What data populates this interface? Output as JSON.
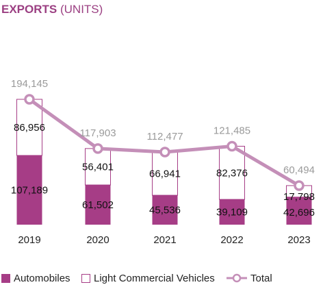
{
  "title": {
    "main": "EXPORTS",
    "sub": "(UNITS)"
  },
  "colors": {
    "automobiles": "#a63d86",
    "lcv_border": "#a63d86",
    "total_line": "#c48fb8",
    "total_label": "#9a9a9a",
    "title": "#9b3f82"
  },
  "chart_data": {
    "type": "bar",
    "stacked": true,
    "title": "EXPORTS (UNITS)",
    "categories": [
      "2019",
      "2020",
      "2021",
      "2022",
      "2023"
    ],
    "series": [
      {
        "name": "Automobiles",
        "values": [
          107189,
          61502,
          45536,
          39109,
          42696
        ],
        "labels": [
          "107,189",
          "61,502",
          "45,536",
          "39,109",
          "42,696"
        ]
      },
      {
        "name": "Light Commercial Vehicles",
        "values": [
          86956,
          56401,
          66941,
          82376,
          17798
        ],
        "labels": [
          "86,956",
          "56,401",
          "66,941",
          "82,376",
          "17,798"
        ]
      }
    ],
    "line": {
      "name": "Total",
      "values": [
        194145,
        117903,
        112477,
        121485,
        60494
      ],
      "labels": [
        "194,145",
        "117,903",
        "112,477",
        "121,485",
        "60,494"
      ]
    },
    "ylim": [
      0,
      194145
    ],
    "grid": false,
    "legend_position": "bottom"
  },
  "legend": {
    "automobiles": "Automobiles",
    "lcv": "Light Commercial Vehicles",
    "total": "Total"
  }
}
